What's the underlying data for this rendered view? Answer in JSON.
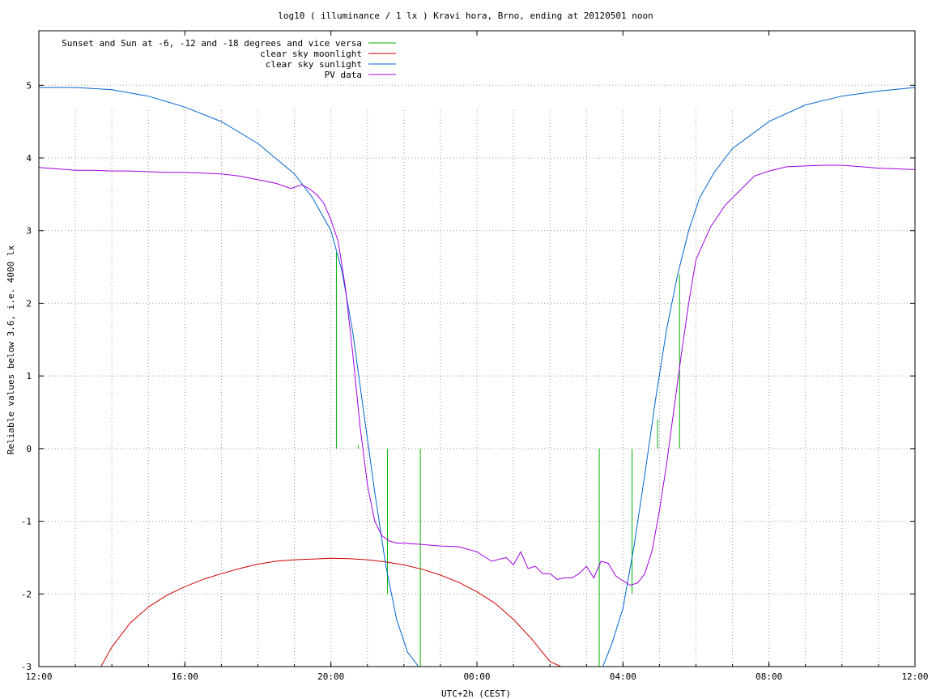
{
  "chart_data": {
    "type": "line",
    "title": "log10 ( illuminance / 1 lx ) Kravi hora, Brno, ending at 20120501 noon",
    "xlabel": "UTC+2h (CEST)",
    "ylabel": "Reliable values below 3.6, i.e. 4000 lx",
    "x_unit": "hours since 12:00 (day before)",
    "xlim": [
      0,
      24
    ],
    "ylim": [
      -3,
      5.75
    ],
    "x_ticks": [
      {
        "v": 0,
        "label": "12:00"
      },
      {
        "v": 4,
        "label": "16:00"
      },
      {
        "v": 8,
        "label": "20:00"
      },
      {
        "v": 12,
        "label": "00:00"
      },
      {
        "v": 16,
        "label": "04:00"
      },
      {
        "v": 20,
        "label": "08:00"
      },
      {
        "v": 24,
        "label": "12:00"
      }
    ],
    "y_ticks": [
      {
        "v": 5,
        "label": "5"
      },
      {
        "v": 4,
        "label": "4"
      },
      {
        "v": 3,
        "label": "3"
      },
      {
        "v": 2,
        "label": "2"
      },
      {
        "v": 1,
        "label": "1"
      },
      {
        "v": 0,
        "label": "0"
      },
      {
        "v": -1,
        "label": "-1"
      },
      {
        "v": -2,
        "label": "-2"
      },
      {
        "v": -3,
        "label": "-3"
      }
    ],
    "grid": true,
    "legend_position": "top-left",
    "series": [
      {
        "name": "Sunset and Sun at -6, -12 and -18 degrees and vice versa",
        "kind": "vlines",
        "color": "#00b000",
        "lines": [
          {
            "x": 8.15,
            "y0": 0,
            "y1": 2.7
          },
          {
            "x": 8.75,
            "y0": 0,
            "y1": 0.05
          },
          {
            "x": 9.55,
            "y0": -2.0,
            "y1": 0
          },
          {
            "x": 10.45,
            "y0": -3,
            "y1": 0
          },
          {
            "x": 15.35,
            "y0": -3,
            "y1": 0
          },
          {
            "x": 16.25,
            "y0": -2.0,
            "y1": 0
          },
          {
            "x": 16.95,
            "y0": 0,
            "y1": 0.4
          },
          {
            "x": 17.55,
            "y0": 0,
            "y1": 2.4
          }
        ]
      },
      {
        "name": "clear sky moonlight",
        "color": "#d00000",
        "x": [
          1.7,
          2.0,
          2.5,
          3.0,
          3.5,
          4.0,
          4.5,
          5.0,
          5.5,
          6.0,
          6.5,
          7.0,
          7.5,
          8.0,
          8.5,
          9.0,
          9.5,
          10.0,
          10.5,
          11.0,
          11.5,
          12.0,
          12.5,
          13.0,
          13.5,
          14.0,
          14.3
        ],
        "y": [
          -3.0,
          -2.73,
          -2.4,
          -2.18,
          -2.02,
          -1.9,
          -1.8,
          -1.72,
          -1.65,
          -1.59,
          -1.55,
          -1.53,
          -1.52,
          -1.51,
          -1.515,
          -1.53,
          -1.56,
          -1.6,
          -1.66,
          -1.74,
          -1.84,
          -1.97,
          -2.13,
          -2.35,
          -2.62,
          -2.93,
          -3.0
        ]
      },
      {
        "name": "clear sky sunlight",
        "color": "#0066cc",
        "x": [
          0,
          1,
          2,
          3,
          4,
          5,
          6,
          7,
          7.5,
          8.0,
          8.3,
          8.6,
          8.9,
          9.2,
          9.5,
          9.8,
          10.1,
          10.4,
          10.55,
          15.45,
          15.7,
          16.0,
          16.3,
          16.6,
          16.9,
          17.2,
          17.5,
          17.8,
          18.1,
          18.5,
          19,
          20,
          21,
          22,
          23,
          24
        ],
        "y": [
          4.97,
          4.97,
          4.94,
          4.85,
          4.7,
          4.5,
          4.2,
          3.78,
          3.45,
          3.0,
          2.45,
          1.6,
          0.5,
          -0.6,
          -1.6,
          -2.35,
          -2.8,
          -3.0,
          -3.0,
          -3.0,
          -2.68,
          -2.2,
          -1.35,
          -0.35,
          0.7,
          1.65,
          2.4,
          3.0,
          3.45,
          3.8,
          4.13,
          4.5,
          4.73,
          4.85,
          4.92,
          4.97
        ]
      },
      {
        "name": "PV data",
        "color": "#a000e0",
        "x": [
          0,
          0.5,
          1,
          1.5,
          2,
          2.5,
          3,
          3.5,
          4,
          4.5,
          5,
          5.5,
          6,
          6.5,
          6.9,
          7.2,
          7.4,
          7.6,
          7.8,
          8.0,
          8.2,
          8.4,
          8.6,
          8.8,
          9.0,
          9.2,
          9.4,
          9.6,
          9.8,
          10,
          10.5,
          11,
          11.5,
          12,
          12.4,
          12.8,
          13.0,
          13.2,
          13.4,
          13.6,
          13.8,
          14.0,
          14.2,
          14.4,
          14.6,
          14.8,
          15.0,
          15.2,
          15.4,
          15.6,
          15.8,
          16.0,
          16.2,
          16.4,
          16.6,
          16.8,
          17.0,
          17.2,
          17.4,
          17.6,
          17.8,
          18.0,
          18.4,
          18.8,
          19.2,
          19.6,
          20,
          20.5,
          21,
          21.5,
          22,
          22.5,
          23,
          23.5,
          24
        ],
        "y": [
          3.87,
          3.85,
          3.83,
          3.83,
          3.82,
          3.82,
          3.81,
          3.8,
          3.8,
          3.79,
          3.78,
          3.75,
          3.7,
          3.65,
          3.58,
          3.63,
          3.58,
          3.5,
          3.38,
          3.15,
          2.85,
          2.2,
          1.3,
          0.3,
          -0.5,
          -1.0,
          -1.2,
          -1.27,
          -1.3,
          -1.3,
          -1.32,
          -1.34,
          -1.35,
          -1.42,
          -1.55,
          -1.5,
          -1.6,
          -1.42,
          -1.65,
          -1.62,
          -1.72,
          -1.72,
          -1.8,
          -1.78,
          -1.78,
          -1.72,
          -1.62,
          -1.78,
          -1.55,
          -1.58,
          -1.75,
          -1.82,
          -1.88,
          -1.85,
          -1.72,
          -1.4,
          -0.85,
          -0.2,
          0.55,
          1.3,
          2.0,
          2.6,
          3.05,
          3.35,
          3.55,
          3.75,
          3.82,
          3.88,
          3.89,
          3.9,
          3.9,
          3.88,
          3.86,
          3.85,
          3.84
        ]
      }
    ]
  }
}
